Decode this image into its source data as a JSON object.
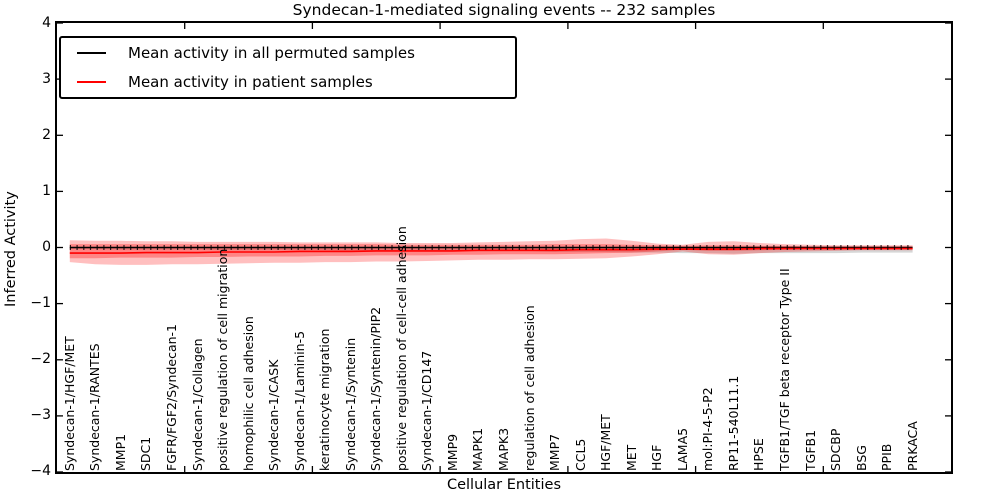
{
  "title": "Syndecan-1-mediated signaling events -- 232 samples",
  "legend": {
    "items": [
      {
        "label": "Mean activity in all permuted samples",
        "color": "#000000"
      },
      {
        "label": "Mean activity in patient samples",
        "color": "#ff0000"
      }
    ],
    "position": "upper left"
  },
  "axes": {
    "ylabel": "Inferred Activity",
    "xlabel": "Cellular Entities",
    "yticks": [
      "4",
      "3",
      "2",
      "1",
      "0",
      "−1",
      "−2",
      "−3",
      "−4"
    ]
  },
  "chart_data": {
    "type": "line",
    "title": "Syndecan-1-mediated signaling events -- 232 samples",
    "xlabel": "Cellular Entities",
    "ylabel": "Inferred Activity",
    "ylim": [
      -4,
      4
    ],
    "grid": false,
    "legend_position": "upper left",
    "categories": [
      "Syndecan-1/HGF/MET",
      "Syndecan-1/RANTES",
      "MMP1",
      "SDC1",
      "FGFR/FGF2/Syndecan-1",
      "Syndecan-1/Collagen",
      "positive regulation of cell migration",
      "homophilic cell adhesion",
      "Syndecan-1/CASK",
      "Syndecan-1/Laminin-5",
      "keratinocyte migration",
      "Syndecan-1/Syntenin",
      "Syndecan-1/Syntenin/PIP2",
      "positive regulation of cell-cell adhesion",
      "Syndecan-1/CD147",
      "MMP9",
      "MAPK1",
      "MAPK3",
      "regulation of cell adhesion",
      "MMP7",
      "CCL5",
      "HGF/MET",
      "MET",
      "HGF",
      "LAMA5",
      "mol:PI-4-5-P2",
      "RP11-540L11.1",
      "HPSE",
      "TGFB1/TGF beta receptor Type II",
      "TGFB1",
      "SDCBP",
      "BSG",
      "PPIB",
      "PRKACA"
    ],
    "series": [
      {
        "name": "Mean activity in all permuted samples",
        "color": "#000000",
        "values": [
          0,
          0,
          0,
          0,
          0,
          0,
          0,
          0,
          0,
          0,
          0,
          0,
          0,
          0,
          0,
          0,
          0,
          0,
          0,
          0,
          0,
          0,
          0,
          0,
          0,
          0,
          0,
          0,
          0,
          0,
          0,
          0,
          0,
          0
        ]
      },
      {
        "name": "Mean activity in patient samples",
        "color": "#ff0000",
        "values": [
          -0.1,
          -0.1,
          -0.1,
          -0.09,
          -0.09,
          -0.09,
          -0.08,
          -0.08,
          -0.08,
          -0.07,
          -0.07,
          -0.07,
          -0.06,
          -0.06,
          -0.06,
          -0.06,
          -0.05,
          -0.05,
          -0.05,
          -0.05,
          -0.04,
          -0.04,
          -0.04,
          -0.03,
          -0.03,
          -0.03,
          -0.03,
          -0.02,
          -0.02,
          -0.02,
          -0.02,
          -0.02,
          -0.02,
          -0.02
        ]
      }
    ],
    "bands": [
      {
        "name": "permuted-samples-envelope",
        "color": "#999999",
        "opacity": 0.4,
        "top": [
          0.01,
          0.01,
          0.01,
          0.01,
          0.01,
          0.01,
          0.01,
          0.01,
          0.01,
          0.01,
          0.01,
          0.01,
          0.01,
          0.01,
          0.01,
          0.01,
          0.01,
          0.01,
          0.01,
          0.01,
          0.01,
          0.01,
          0.01,
          0.01,
          0.01,
          0.01,
          0.01,
          0.01,
          0.01,
          0.01,
          0.01,
          0.01,
          0.01,
          0.01
        ],
        "bottom": [
          -0.03,
          -0.03,
          -0.04,
          -0.04,
          -0.04,
          -0.04,
          -0.05,
          -0.05,
          -0.05,
          -0.05,
          -0.05,
          -0.06,
          -0.06,
          -0.06,
          -0.06,
          -0.06,
          -0.07,
          -0.07,
          -0.07,
          -0.08,
          -0.08,
          -0.08,
          -0.09,
          -0.09,
          -0.1,
          -0.1,
          -0.11,
          -0.1,
          -0.1,
          -0.1,
          -0.1,
          -0.09,
          -0.09,
          -0.09
        ]
      },
      {
        "name": "patient-samples-outer-band",
        "color": "#ff0000",
        "opacity": 0.25,
        "top": [
          0.13,
          0.12,
          0.12,
          0.11,
          0.11,
          0.1,
          0.1,
          0.1,
          0.1,
          0.09,
          0.09,
          0.09,
          0.09,
          0.08,
          0.08,
          0.08,
          0.09,
          0.1,
          0.11,
          0.12,
          0.15,
          0.16,
          0.12,
          0.07,
          0.05,
          0.1,
          0.11,
          0.08,
          0.06,
          0.05,
          0.04,
          0.04,
          0.04,
          0.04
        ],
        "bottom": [
          -0.26,
          -0.3,
          -0.31,
          -0.31,
          -0.3,
          -0.3,
          -0.29,
          -0.28,
          -0.27,
          -0.27,
          -0.26,
          -0.26,
          -0.25,
          -0.25,
          -0.24,
          -0.23,
          -0.22,
          -0.22,
          -0.21,
          -0.21,
          -0.2,
          -0.19,
          -0.16,
          -0.12,
          -0.07,
          -0.12,
          -0.13,
          -0.1,
          -0.08,
          -0.07,
          -0.06,
          -0.05,
          -0.05,
          -0.05
        ]
      },
      {
        "name": "patient-samples-inner-band",
        "color": "#ff0000",
        "opacity": 0.3,
        "top": [
          0.06,
          0.06,
          0.06,
          0.06,
          0.06,
          0.06,
          0.06,
          0.06,
          0.06,
          0.06,
          0.06,
          0.06,
          0.06,
          0.05,
          0.05,
          0.05,
          0.05,
          0.05,
          0.05,
          0.06,
          0.06,
          0.06,
          0.05,
          0.04,
          0.03,
          0.04,
          0.04,
          0.03,
          0.03,
          0.02,
          0.02,
          0.02,
          0.02,
          0.02
        ],
        "bottom": [
          -0.19,
          -0.19,
          -0.18,
          -0.18,
          -0.18,
          -0.17,
          -0.17,
          -0.16,
          -0.16,
          -0.16,
          -0.15,
          -0.15,
          -0.14,
          -0.14,
          -0.14,
          -0.13,
          -0.13,
          -0.12,
          -0.12,
          -0.12,
          -0.11,
          -0.1,
          -0.09,
          -0.07,
          -0.04,
          -0.06,
          -0.06,
          -0.05,
          -0.04,
          -0.03,
          -0.03,
          -0.03,
          -0.03,
          -0.03
        ]
      }
    ]
  }
}
